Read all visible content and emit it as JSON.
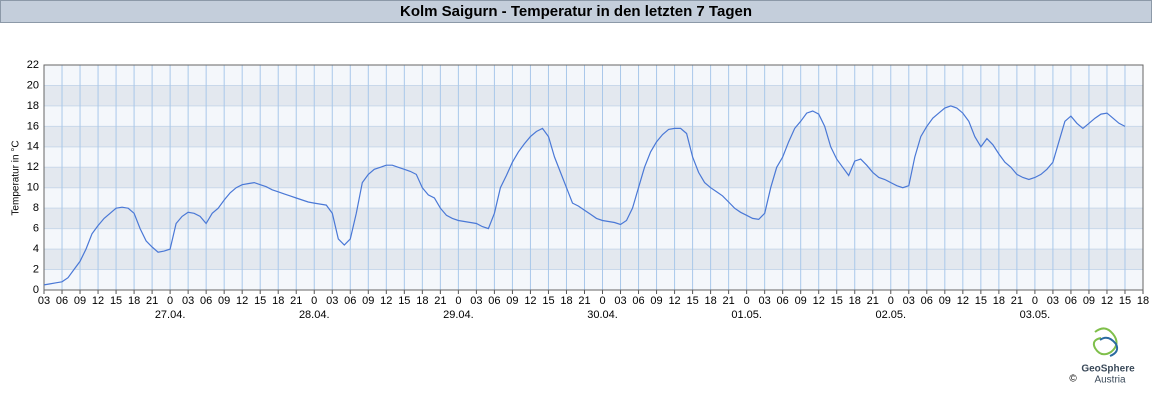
{
  "chart_data": {
    "type": "line",
    "title": "Kolm Saigurn - Temperatur in den letzten 7 Tagen",
    "y_label": "Temperatur in °C",
    "color": "#4a78d6",
    "grid": true,
    "x": [
      0,
      1,
      2,
      3,
      4,
      5,
      6,
      7,
      8,
      9,
      10,
      11,
      12,
      13,
      14,
      15,
      16,
      17,
      18,
      19,
      20,
      21,
      22,
      23,
      24,
      25,
      26,
      27,
      28,
      29,
      30,
      31,
      32,
      33,
      34,
      35,
      36,
      37,
      38,
      39,
      40,
      41,
      42,
      43,
      44,
      45,
      46,
      47,
      48,
      49,
      50,
      51,
      52,
      53,
      54,
      55,
      56,
      57,
      58,
      59,
      60,
      61,
      62,
      63,
      64,
      65,
      66,
      67,
      68,
      69,
      70,
      71,
      72,
      73,
      74,
      75,
      76,
      77,
      78,
      79,
      80,
      81,
      82,
      83,
      84,
      85,
      86,
      87,
      88,
      89,
      90,
      91,
      92,
      93,
      94,
      95,
      96,
      97,
      98,
      99,
      100,
      101,
      102,
      103,
      104,
      105,
      106,
      107,
      108,
      109,
      110,
      111,
      112,
      113,
      114,
      115,
      116,
      117,
      118,
      119,
      120,
      121,
      122,
      123,
      124,
      125,
      126,
      127,
      128,
      129,
      130,
      131,
      132,
      133,
      134,
      135,
      136,
      137,
      138,
      139,
      140,
      141,
      142,
      143,
      144,
      145,
      146,
      147,
      148,
      149,
      150,
      151,
      152,
      153,
      154,
      155,
      156,
      157,
      158,
      159,
      160,
      161,
      162,
      163,
      164,
      165,
      166,
      167,
      168,
      169,
      170,
      171,
      172,
      173,
      174,
      175,
      176,
      177,
      178,
      179,
      180
    ],
    "values": [
      0.5,
      0.6,
      0.7,
      0.8,
      1.2,
      2,
      2.8,
      4,
      5.5,
      6.3,
      7,
      7.5,
      8,
      8.1,
      8,
      7.5,
      6,
      4.8,
      4.2,
      3.7,
      3.8,
      4,
      6.5,
      7.2,
      7.6,
      7.5,
      7.2,
      6.5,
      7.5,
      8,
      8.8,
      9.5,
      10,
      10.3,
      10.4,
      10.5,
      10.3,
      10.1,
      9.8,
      9.6,
      9.4,
      9.2,
      9,
      8.8,
      8.6,
      8.5,
      8.4,
      8.3,
      7.5,
      5,
      4.4,
      5,
      7.5,
      10.5,
      11.3,
      11.8,
      12,
      12.2,
      12.2,
      12,
      11.8,
      11.6,
      11.3,
      10,
      9.3,
      9,
      8,
      7.3,
      7,
      6.8,
      6.7,
      6.6,
      6.5,
      6.2,
      6,
      7.5,
      10,
      11.2,
      12.5,
      13.5,
      14.3,
      15,
      15.5,
      15.8,
      15,
      13,
      11.5,
      10,
      8.5,
      8.2,
      7.8,
      7.4,
      7,
      6.8,
      6.7,
      6.6,
      6.4,
      6.8,
      8,
      10,
      12,
      13.5,
      14.5,
      15.2,
      15.7,
      15.8,
      15.8,
      15.3,
      13,
      11.5,
      10.5,
      10,
      9.6,
      9.2,
      8.6,
      8,
      7.6,
      7.3,
      7,
      6.9,
      7.5,
      10,
      12,
      13,
      14.5,
      15.8,
      16.5,
      17.3,
      17.5,
      17.2,
      16,
      14,
      12.8,
      12,
      11.2,
      12.6,
      12.8,
      12.2,
      11.5,
      11,
      10.8,
      10.5,
      10.2,
      10,
      10.2,
      13,
      15,
      16,
      16.8,
      17.3,
      17.8,
      18,
      17.8,
      17.3,
      16.5,
      15,
      14,
      14.8,
      14.2,
      13.3,
      12.5,
      12,
      11.3,
      11,
      10.8,
      11,
      11.3,
      11.8,
      12.5,
      14.5,
      16.5,
      17,
      16.3,
      15.8,
      16.3,
      16.8,
      17.2,
      17.3,
      16.8,
      16.3,
      16
    ],
    "xlim": [
      0,
      183
    ],
    "xticks": [
      {
        "value": 0,
        "label": "03"
      },
      {
        "value": 3,
        "label": "06"
      },
      {
        "value": 6,
        "label": "09"
      },
      {
        "value": 9,
        "label": "12"
      },
      {
        "value": 12,
        "label": "15"
      },
      {
        "value": 15,
        "label": "18"
      },
      {
        "value": 18,
        "label": "21"
      },
      {
        "value": 21,
        "label": "0"
      },
      {
        "value": 24,
        "label": "03"
      },
      {
        "value": 27,
        "label": "06"
      },
      {
        "value": 30,
        "label": "09"
      },
      {
        "value": 33,
        "label": "12"
      },
      {
        "value": 36,
        "label": "15"
      },
      {
        "value": 39,
        "label": "18"
      },
      {
        "value": 42,
        "label": "21"
      },
      {
        "value": 45,
        "label": "0"
      },
      {
        "value": 48,
        "label": "03"
      },
      {
        "value": 51,
        "label": "06"
      },
      {
        "value": 54,
        "label": "09"
      },
      {
        "value": 57,
        "label": "12"
      },
      {
        "value": 60,
        "label": "15"
      },
      {
        "value": 63,
        "label": "18"
      },
      {
        "value": 66,
        "label": "21"
      },
      {
        "value": 69,
        "label": "0"
      },
      {
        "value": 72,
        "label": "03"
      },
      {
        "value": 75,
        "label": "06"
      },
      {
        "value": 78,
        "label": "09"
      },
      {
        "value": 81,
        "label": "12"
      },
      {
        "value": 84,
        "label": "15"
      },
      {
        "value": 87,
        "label": "18"
      },
      {
        "value": 90,
        "label": "21"
      },
      {
        "value": 93,
        "label": "0"
      },
      {
        "value": 96,
        "label": "03"
      },
      {
        "value": 99,
        "label": "06"
      },
      {
        "value": 102,
        "label": "09"
      },
      {
        "value": 105,
        "label": "12"
      },
      {
        "value": 108,
        "label": "15"
      },
      {
        "value": 111,
        "label": "18"
      },
      {
        "value": 114,
        "label": "21"
      },
      {
        "value": 117,
        "label": "0"
      },
      {
        "value": 120,
        "label": "03"
      },
      {
        "value": 123,
        "label": "06"
      },
      {
        "value": 126,
        "label": "09"
      },
      {
        "value": 129,
        "label": "12"
      },
      {
        "value": 132,
        "label": "15"
      },
      {
        "value": 135,
        "label": "18"
      },
      {
        "value": 138,
        "label": "21"
      },
      {
        "value": 141,
        "label": "0"
      },
      {
        "value": 144,
        "label": "03"
      },
      {
        "value": 147,
        "label": "06"
      },
      {
        "value": 150,
        "label": "09"
      },
      {
        "value": 153,
        "label": "12"
      },
      {
        "value": 156,
        "label": "15"
      },
      {
        "value": 159,
        "label": "18"
      },
      {
        "value": 162,
        "label": "21"
      },
      {
        "value": 165,
        "label": "0"
      },
      {
        "value": 168,
        "label": "03"
      },
      {
        "value": 171,
        "label": "06"
      },
      {
        "value": 174,
        "label": "09"
      },
      {
        "value": 177,
        "label": "12"
      },
      {
        "value": 180,
        "label": "15"
      },
      {
        "value": 183,
        "label": "18"
      }
    ],
    "date_ticks": [
      {
        "value": 21,
        "label": "27.04."
      },
      {
        "value": 45,
        "label": "28.04."
      },
      {
        "value": 69,
        "label": "29.04."
      },
      {
        "value": 93,
        "label": "30.04."
      },
      {
        "value": 117,
        "label": "01.05."
      },
      {
        "value": 141,
        "label": "02.05."
      },
      {
        "value": 165,
        "label": "03.05."
      }
    ],
    "ylim": [
      0,
      22
    ],
    "yticks": [
      0,
      2,
      4,
      6,
      8,
      10,
      12,
      14,
      16,
      18,
      20,
      22
    ]
  },
  "logo": {
    "name": "GeoSphere",
    "country": "Austria",
    "copyright": "©"
  }
}
